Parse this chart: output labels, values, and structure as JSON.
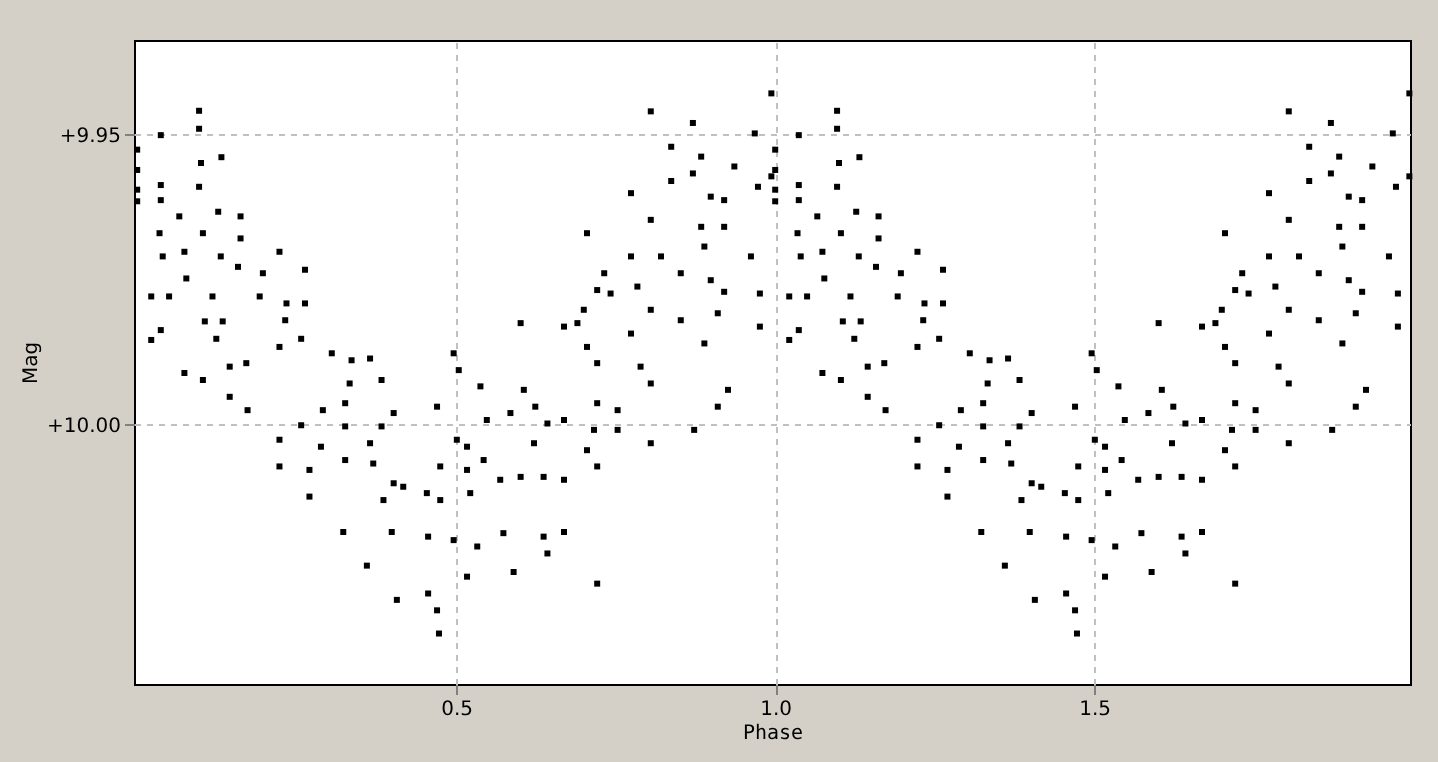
{
  "chart_data": {
    "type": "scatter",
    "xlabel": "Phase",
    "ylabel": "Mag",
    "xlim": [
      -0.005,
      1.995
    ],
    "ylim": [
      10.0447,
      9.9337
    ],
    "xticks": [
      0.5,
      {
        "value": 1,
        "label": "1.0"
      },
      1.5
    ],
    "yticks": [
      {
        "value": 9.95,
        "label": "+9.95"
      },
      {
        "value": 10,
        "label": "+10.00"
      }
    ],
    "grid": true,
    "marker": "square",
    "series": [
      {
        "color": "#000000",
        "x": [
          0.0,
          0.0,
          0.0,
          0.0,
          0.037,
          0.037,
          0.037,
          0.097,
          0.097,
          0.1,
          0.097,
          0.132,
          0.066,
          0.035,
          0.04,
          0.074,
          0.077,
          0.127,
          0.162,
          0.162,
          0.131,
          0.158,
          0.103,
          0.022,
          0.05,
          0.037,
          0.022,
          0.118,
          0.106,
          0.134,
          0.124,
          0.192,
          0.197,
          0.223,
          0.263,
          0.263,
          0.234,
          0.232,
          0.223,
          0.257,
          0.145,
          0.171,
          0.074,
          0.103,
          0.145,
          0.173,
          0.305,
          0.336,
          0.365,
          0.333,
          0.383,
          0.326,
          0.326,
          0.383,
          0.402,
          0.257,
          0.291,
          0.288,
          0.223,
          0.223,
          0.27,
          0.27,
          0.326,
          0.365,
          0.37,
          0.402,
          0.417,
          0.323,
          0.386,
          0.399,
          0.36,
          0.407,
          0.454,
          0.456,
          0.475,
          0.456,
          0.47,
          0.473,
          0.496,
          0.504,
          0.47,
          0.501,
          0.475,
          0.517,
          0.517,
          0.538,
          0.548,
          0.585,
          0.606,
          0.601,
          0.624,
          0.643,
          0.543,
          0.522,
          0.569,
          0.601,
          0.637,
          0.669,
          0.622,
          0.496,
          0.533,
          0.574,
          0.637,
          0.669,
          0.517,
          0.59,
          0.643,
          0.721,
          0.669,
          0.669,
          0.69,
          0.705,
          0.7,
          0.721,
          0.742,
          0.721,
          0.721,
          0.705,
          0.721,
          0.716,
          0.753,
          0.753,
          0.705,
          0.732,
          0.774,
          0.784,
          0.805,
          0.789,
          0.805,
          0.805,
          0.774,
          0.774,
          0.805,
          0.821,
          0.837,
          0.837,
          0.805,
          0.852,
          0.852,
          0.871,
          0.871,
          0.884,
          0.899,
          0.936,
          0.92,
          0.884,
          0.92,
          0.889,
          0.899,
          0.92,
          0.91,
          0.889,
          0.873,
          0.91,
          0.926,
          0.962,
          0.976,
          0.976,
          0.973,
          0.968,
          0.994,
          0.994,
          1.0,
          1.0,
          1.0,
          1.0,
          1.037,
          1.037,
          1.037,
          1.097,
          1.097,
          1.1,
          1.097,
          1.132,
          1.066,
          1.035,
          1.04,
          1.074,
          1.077,
          1.127,
          1.162,
          1.162,
          1.131,
          1.158,
          1.103,
          1.022,
          1.05,
          1.037,
          1.022,
          1.118,
          1.106,
          1.134,
          1.124,
          1.192,
          1.197,
          1.223,
          1.263,
          1.263,
          1.234,
          1.232,
          1.223,
          1.257,
          1.145,
          1.171,
          1.074,
          1.103,
          1.145,
          1.173,
          1.305,
          1.336,
          1.365,
          1.333,
          1.383,
          1.326,
          1.326,
          1.383,
          1.402,
          1.257,
          1.291,
          1.288,
          1.223,
          1.223,
          1.27,
          1.27,
          1.326,
          1.365,
          1.37,
          1.402,
          1.417,
          1.323,
          1.386,
          1.399,
          1.36,
          1.407,
          1.454,
          1.456,
          1.475,
          1.456,
          1.47,
          1.473,
          1.496,
          1.504,
          1.47,
          1.501,
          1.475,
          1.517,
          1.517,
          1.538,
          1.548,
          1.585,
          1.606,
          1.601,
          1.624,
          1.643,
          1.543,
          1.522,
          1.569,
          1.601,
          1.637,
          1.669,
          1.622,
          1.496,
          1.533,
          1.574,
          1.637,
          1.669,
          1.517,
          1.59,
          1.643,
          1.721,
          1.669,
          1.669,
          1.69,
          1.705,
          1.7,
          1.721,
          1.742,
          1.721,
          1.721,
          1.705,
          1.721,
          1.716,
          1.753,
          1.753,
          1.705,
          1.732,
          1.774,
          1.784,
          1.805,
          1.789,
          1.805,
          1.805,
          1.774,
          1.774,
          1.805,
          1.821,
          1.837,
          1.837,
          1.805,
          1.852,
          1.852,
          1.871,
          1.871,
          1.884,
          1.899,
          1.936,
          1.92,
          1.884,
          1.92,
          1.889,
          1.899,
          1.92,
          1.91,
          1.889,
          1.873,
          1.91,
          1.926,
          1.962,
          1.976,
          1.976,
          1.973,
          1.968,
          1.994,
          1.994
        ],
        "values": [
          9.9526,
          9.9561,
          9.9595,
          9.9615,
          9.9501,
          9.9587,
          9.9613,
          9.9459,
          9.949,
          9.9549,
          9.959,
          9.9539,
          9.9641,
          9.967,
          9.971,
          9.9702,
          9.9748,
          9.9633,
          9.9641,
          9.9679,
          9.971,
          9.9728,
          9.967,
          9.9779,
          9.9779,
          9.9837,
          9.9854,
          9.9779,
          9.9822,
          9.9822,
          9.9852,
          9.9779,
          9.9739,
          9.9702,
          9.9733,
          9.9791,
          9.9791,
          9.982,
          9.9866,
          9.9852,
          9.99,
          9.9894,
          9.9911,
          9.9923,
          9.9952,
          9.9975,
          9.9877,
          9.9889,
          9.9886,
          9.9929,
          9.9923,
          9.9963,
          10.0003,
          10.0003,
          9.998,
          10.0001,
          9.9975,
          10.0038,
          10.0026,
          10.0072,
          10.0078,
          10.0124,
          10.0061,
          10.0032,
          10.0067,
          10.0101,
          10.0107,
          10.0185,
          10.013,
          10.0185,
          10.0243,
          10.0302,
          10.0118,
          10.0193,
          10.013,
          10.0291,
          10.032,
          10.036,
          9.9877,
          9.9906,
          9.9969,
          10.0026,
          10.0072,
          10.0038,
          10.0078,
          9.9934,
          9.9992,
          9.998,
          9.994,
          9.9825,
          9.9969,
          9.9998,
          10.0061,
          10.0118,
          10.0095,
          10.009,
          10.009,
          10.0095,
          10.0032,
          10.0199,
          10.021,
          10.0187,
          10.0193,
          10.0185,
          10.0262,
          10.0254,
          10.0222,
          10.0274,
          9.9831,
          9.9992,
          9.9825,
          9.9866,
          9.9802,
          9.9768,
          9.9774,
          9.9894,
          9.9963,
          10.0044,
          10.0072,
          10.0009,
          9.9975,
          10.0009,
          9.967,
          9.9739,
          9.9843,
          9.9762,
          9.9802,
          9.99,
          9.9929,
          10.0032,
          9.971,
          9.9601,
          9.9647,
          9.971,
          9.958,
          9.9521,
          9.946,
          9.9739,
          9.982,
          9.948,
          9.9567,
          9.9538,
          9.9607,
          9.9555,
          9.9613,
          9.9659,
          9.9659,
          9.9693,
          9.9751,
          9.9771,
          9.9808,
          9.986,
          10.0009,
          9.9969,
          9.994,
          9.971,
          9.9774,
          9.9831,
          9.959,
          9.9498,
          9.9429,
          9.9572,
          9.9526,
          9.9561,
          9.9595,
          9.9615,
          9.9501,
          9.9587,
          9.9613,
          9.9459,
          9.949,
          9.9549,
          9.959,
          9.9539,
          9.9641,
          9.967,
          9.971,
          9.9702,
          9.9748,
          9.9633,
          9.9641,
          9.9679,
          9.971,
          9.9728,
          9.967,
          9.9779,
          9.9779,
          9.9837,
          9.9854,
          9.9779,
          9.9822,
          9.9822,
          9.9852,
          9.9779,
          9.9739,
          9.9702,
          9.9733,
          9.9791,
          9.9791,
          9.982,
          9.9866,
          9.9852,
          9.99,
          9.9894,
          9.9911,
          9.9923,
          9.9952,
          9.9975,
          9.9877,
          9.9889,
          9.9886,
          9.9929,
          9.9923,
          9.9963,
          10.0003,
          10.0003,
          9.998,
          10.0001,
          9.9975,
          10.0038,
          10.0026,
          10.0072,
          10.0078,
          10.0124,
          10.0061,
          10.0032,
          10.0067,
          10.0101,
          10.0107,
          10.0185,
          10.013,
          10.0185,
          10.0243,
          10.0302,
          10.0118,
          10.0193,
          10.013,
          10.0291,
          10.032,
          10.036,
          9.9877,
          9.9906,
          9.9969,
          10.0026,
          10.0072,
          10.0038,
          10.0078,
          9.9934,
          9.9992,
          9.998,
          9.994,
          9.9825,
          9.9969,
          9.9998,
          10.0061,
          10.0118,
          10.0095,
          10.009,
          10.009,
          10.0095,
          10.0032,
          10.0199,
          10.021,
          10.0187,
          10.0193,
          10.0185,
          10.0262,
          10.0254,
          10.0222,
          10.0274,
          9.9831,
          9.9992,
          9.9825,
          9.9866,
          9.9802,
          9.9768,
          9.9774,
          9.9894,
          9.9963,
          10.0044,
          10.0072,
          10.0009,
          9.9975,
          10.0009,
          9.967,
          9.9739,
          9.9843,
          9.9762,
          9.9802,
          9.99,
          9.9929,
          10.0032,
          9.971,
          9.9601,
          9.9647,
          9.971,
          9.958,
          9.9521,
          9.946,
          9.9739,
          9.982,
          9.948,
          9.9567,
          9.9538,
          9.9607,
          9.9555,
          9.9613,
          9.9659,
          9.9659,
          9.9693,
          9.9751,
          9.9771,
          9.9808,
          9.986,
          10.0009,
          9.9969,
          9.994,
          9.971,
          9.9774,
          9.9831,
          9.959,
          9.9498,
          9.9429,
          9.9572
        ]
      }
    ]
  }
}
